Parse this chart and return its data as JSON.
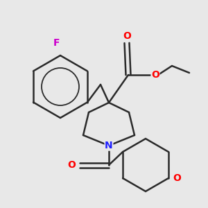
{
  "background_color": "#e8e8e8",
  "bond_color": "#2a2a2a",
  "atom_colors": {
    "F": "#cc00cc",
    "O": "#ff0000",
    "N": "#2020ff",
    "C": "#2a2a2a"
  },
  "figsize": [
    3.0,
    3.0
  ],
  "dpi": 100
}
